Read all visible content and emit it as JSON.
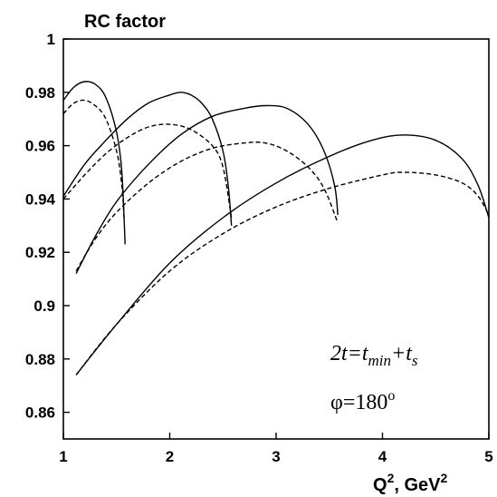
{
  "chart_data": {
    "type": "line",
    "title": "RC factor",
    "xlabel": "Q², GeV²",
    "xlabel_main": "Q",
    "xlabel_sup": "2",
    "xlabel_mid": ", GeV",
    "xlabel_sup2": "2",
    "ylabel": "",
    "xlim": [
      1,
      5
    ],
    "ylim": [
      0.85,
      1.0
    ],
    "xticks": [
      1,
      2,
      3,
      4,
      5
    ],
    "yticks": [
      0.86,
      0.88,
      0.9,
      0.92,
      0.94,
      0.96,
      0.98,
      1.0
    ],
    "ytick_labels": [
      "0.86",
      "0.88",
      "0.9",
      "0.92",
      "0.94",
      "0.96",
      "0.98",
      "1"
    ],
    "xtick_labels": [
      "1",
      "2",
      "3",
      "4",
      "5"
    ],
    "grid": false,
    "annotations": {
      "line1": "2t=t_min+t_s",
      "line2": "φ=180°"
    },
    "series": [
      {
        "style": "solid",
        "x": [
          1.0,
          1.1,
          1.2,
          1.3,
          1.4,
          1.5,
          1.55,
          1.58
        ],
        "y": [
          0.977,
          0.982,
          0.984,
          0.983,
          0.978,
          0.965,
          0.95,
          0.923
        ]
      },
      {
        "style": "dashed",
        "x": [
          1.0,
          1.1,
          1.2,
          1.3,
          1.4,
          1.5,
          1.55,
          1.57
        ],
        "y": [
          0.972,
          0.976,
          0.977,
          0.975,
          0.97,
          0.958,
          0.945,
          0.933
        ]
      },
      {
        "style": "solid",
        "x": [
          1.0,
          1.2,
          1.4,
          1.6,
          1.8,
          2.0,
          2.1,
          2.2,
          2.3,
          2.4,
          2.5,
          2.55,
          2.58
        ],
        "y": [
          0.941,
          0.953,
          0.962,
          0.97,
          0.976,
          0.979,
          0.98,
          0.979,
          0.976,
          0.97,
          0.958,
          0.945,
          0.93
        ]
      },
      {
        "style": "dashed",
        "x": [
          1.0,
          1.2,
          1.4,
          1.6,
          1.8,
          2.0,
          2.2,
          2.4,
          2.5,
          2.58
        ],
        "y": [
          0.94,
          0.949,
          0.957,
          0.963,
          0.967,
          0.968,
          0.966,
          0.96,
          0.952,
          0.933
        ]
      },
      {
        "style": "solid",
        "x": [
          1.12,
          1.3,
          1.5,
          1.8,
          2.1,
          2.4,
          2.7,
          2.9,
          3.1,
          3.3,
          3.45,
          3.55,
          3.58
        ],
        "y": [
          0.912,
          0.926,
          0.939,
          0.953,
          0.964,
          0.971,
          0.974,
          0.975,
          0.974,
          0.968,
          0.958,
          0.945,
          0.934
        ]
      },
      {
        "style": "dashed",
        "x": [
          1.12,
          1.3,
          1.5,
          1.8,
          2.1,
          2.4,
          2.7,
          2.9,
          3.1,
          3.3,
          3.45,
          3.58
        ],
        "y": [
          0.913,
          0.925,
          0.935,
          0.946,
          0.954,
          0.959,
          0.961,
          0.961,
          0.958,
          0.952,
          0.944,
          0.931
        ]
      },
      {
        "style": "solid",
        "x": [
          1.12,
          1.5,
          2.0,
          2.5,
          3.0,
          3.5,
          3.9,
          4.2,
          4.5,
          4.75,
          4.9,
          5.0
        ],
        "y": [
          0.874,
          0.893,
          0.916,
          0.933,
          0.946,
          0.956,
          0.962,
          0.964,
          0.962,
          0.955,
          0.945,
          0.933
        ]
      },
      {
        "style": "dashed",
        "x": [
          1.12,
          1.5,
          2.0,
          2.5,
          3.0,
          3.5,
          4.0,
          4.2,
          4.5,
          4.75,
          4.9,
          5.0
        ],
        "y": [
          0.874,
          0.893,
          0.913,
          0.927,
          0.937,
          0.944,
          0.949,
          0.95,
          0.949,
          0.946,
          0.941,
          0.934
        ]
      }
    ]
  }
}
